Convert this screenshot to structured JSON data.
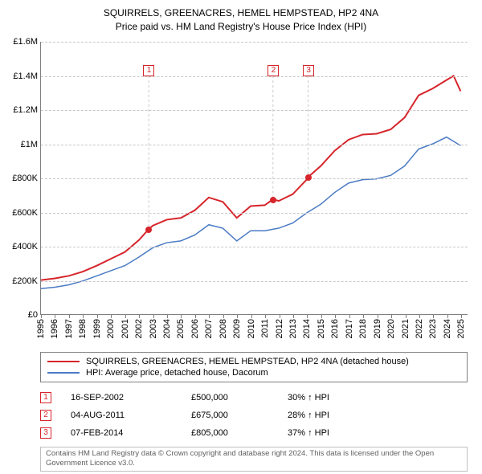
{
  "title": {
    "line1": "SQUIRRELS, GREENACRES, HEMEL HEMPSTEAD, HP2 4NA",
    "line2": "Price paid vs. HM Land Registry's House Price Index (HPI)"
  },
  "chart": {
    "type": "line",
    "xlim": [
      1995,
      2025.5
    ],
    "ylim": [
      0,
      1600000
    ],
    "x_ticks": [
      1995,
      1996,
      1997,
      1998,
      1999,
      2000,
      2001,
      2002,
      2003,
      2004,
      2005,
      2006,
      2007,
      2008,
      2009,
      2010,
      2011,
      2012,
      2013,
      2014,
      2015,
      2016,
      2017,
      2018,
      2019,
      2020,
      2021,
      2022,
      2023,
      2024,
      2025
    ],
    "y_ticks": [
      {
        "v": 0,
        "label": "£0"
      },
      {
        "v": 200000,
        "label": "£200K"
      },
      {
        "v": 400000,
        "label": "£400K"
      },
      {
        "v": 600000,
        "label": "£600K"
      },
      {
        "v": 800000,
        "label": "£800K"
      },
      {
        "v": 1000000,
        "label": "£1M"
      },
      {
        "v": 1200000,
        "label": "£1.2M"
      },
      {
        "v": 1400000,
        "label": "£1.4M"
      },
      {
        "v": 1600000,
        "label": "£1.6M"
      }
    ],
    "grid_color": "#c8c8c8",
    "axis_color": "#808080",
    "background_color": "#ffffff",
    "series": [
      {
        "name": "property",
        "label": "SQUIRRELS, GREENACRES, HEMEL HEMPSTEAD, HP2 4NA (detached house)",
        "color": "#d6252b",
        "line_width": 2,
        "data": [
          [
            1995,
            200000
          ],
          [
            1996,
            210000
          ],
          [
            1997,
            225000
          ],
          [
            1998,
            250000
          ],
          [
            1999,
            285000
          ],
          [
            2000,
            325000
          ],
          [
            2001,
            365000
          ],
          [
            2002,
            435000
          ],
          [
            2002.71,
            500000
          ],
          [
            2003,
            520000
          ],
          [
            2004,
            555000
          ],
          [
            2005,
            565000
          ],
          [
            2006,
            610000
          ],
          [
            2007,
            685000
          ],
          [
            2008,
            660000
          ],
          [
            2009,
            565000
          ],
          [
            2010,
            635000
          ],
          [
            2011,
            640000
          ],
          [
            2011.59,
            675000
          ],
          [
            2012,
            665000
          ],
          [
            2013,
            705000
          ],
          [
            2014,
            790000
          ],
          [
            2014.1,
            805000
          ],
          [
            2015,
            870000
          ],
          [
            2016,
            960000
          ],
          [
            2017,
            1025000
          ],
          [
            2018,
            1055000
          ],
          [
            2019,
            1060000
          ],
          [
            2020,
            1085000
          ],
          [
            2021,
            1155000
          ],
          [
            2022,
            1285000
          ],
          [
            2023,
            1325000
          ],
          [
            2024,
            1375000
          ],
          [
            2024.5,
            1400000
          ],
          [
            2025,
            1310000
          ]
        ]
      },
      {
        "name": "hpi",
        "label": "HPI: Average price, detached house, Dacorum",
        "color": "#4a7bc4",
        "line_width": 1.5,
        "data": [
          [
            1995,
            150000
          ],
          [
            1996,
            158000
          ],
          [
            1997,
            172000
          ],
          [
            1998,
            195000
          ],
          [
            1999,
            225000
          ],
          [
            2000,
            255000
          ],
          [
            2001,
            285000
          ],
          [
            2002,
            335000
          ],
          [
            2003,
            390000
          ],
          [
            2004,
            420000
          ],
          [
            2005,
            430000
          ],
          [
            2006,
            465000
          ],
          [
            2007,
            525000
          ],
          [
            2008,
            505000
          ],
          [
            2009,
            430000
          ],
          [
            2010,
            490000
          ],
          [
            2011,
            490000
          ],
          [
            2012,
            505000
          ],
          [
            2013,
            535000
          ],
          [
            2014,
            595000
          ],
          [
            2015,
            645000
          ],
          [
            2016,
            715000
          ],
          [
            2017,
            770000
          ],
          [
            2018,
            790000
          ],
          [
            2019,
            795000
          ],
          [
            2020,
            815000
          ],
          [
            2021,
            870000
          ],
          [
            2022,
            970000
          ],
          [
            2023,
            1000000
          ],
          [
            2024,
            1040000
          ],
          [
            2025,
            990000
          ]
        ]
      }
    ],
    "sale_markers": [
      {
        "num": "1",
        "x": 2002.71,
        "y": 500000,
        "box_y": 1430000
      },
      {
        "num": "2",
        "x": 2011.59,
        "y": 675000,
        "box_y": 1430000
      },
      {
        "num": "3",
        "x": 2014.1,
        "y": 805000,
        "box_y": 1430000
      }
    ],
    "marker_color": "#d6252b"
  },
  "sales": [
    {
      "num": "1",
      "date": "16-SEP-2002",
      "price": "£500,000",
      "delta": "30% ↑ HPI"
    },
    {
      "num": "2",
      "date": "04-AUG-2011",
      "price": "£675,000",
      "delta": "28% ↑ HPI"
    },
    {
      "num": "3",
      "date": "07-FEB-2014",
      "price": "£805,000",
      "delta": "37% ↑ HPI"
    }
  ],
  "attribution": "Contains HM Land Registry data © Crown copyright and database right 2024. This data is licensed under the Open Government Licence v3.0."
}
